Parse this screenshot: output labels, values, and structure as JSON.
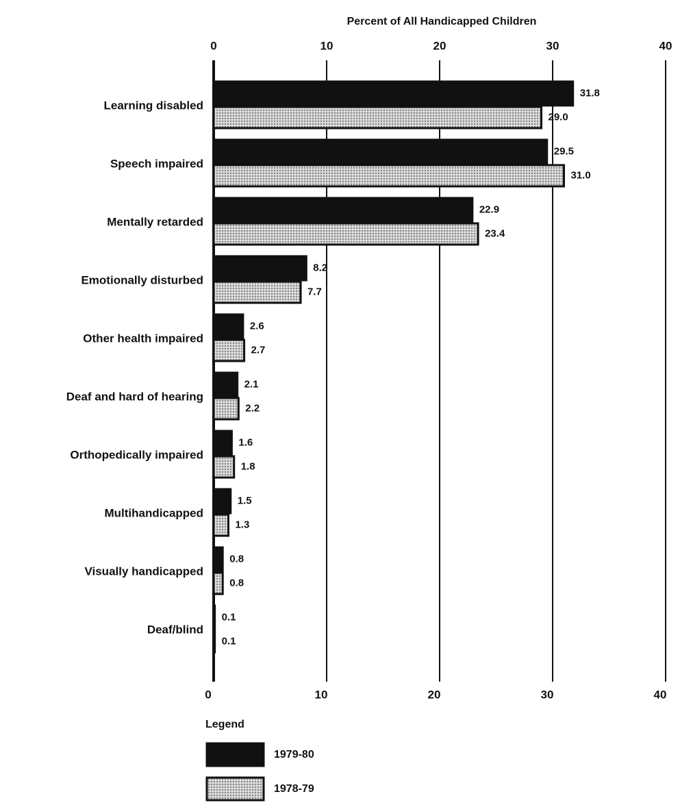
{
  "chart_data": {
    "type": "bar",
    "orientation": "horizontal",
    "title": "Percent of All Handicapped Children",
    "categories": [
      "Learning disabled",
      "Speech impaired",
      "Mentally retarded",
      "Emotionally disturbed",
      "Other health impaired",
      "Deaf and hard of hearing",
      "Orthopedically impaired",
      "Multihandicapped",
      "Visually handicapped",
      "Deaf/blind"
    ],
    "series": [
      {
        "name": "1979-80",
        "color": "#111111",
        "pattern": "solid",
        "values": [
          31.8,
          29.5,
          22.9,
          8.2,
          2.6,
          2.1,
          1.6,
          1.5,
          0.8,
          0.1
        ],
        "value_labels": [
          "31.8",
          "29.5",
          "22.9",
          "8.2",
          "2.6",
          "2.1",
          "1.6",
          "1.5",
          "0.8",
          "0.1"
        ]
      },
      {
        "name": "1978-79",
        "color": "#cfcfcf",
        "pattern": "dotted",
        "values": [
          29.0,
          31.0,
          23.4,
          7.7,
          2.7,
          2.2,
          1.8,
          1.3,
          0.8,
          0.1
        ],
        "value_labels": [
          "29.0",
          "31.0",
          "23.4",
          "7.7",
          "2.7",
          "2.2",
          "1.8",
          "1.3",
          "0.8",
          "0.1"
        ]
      }
    ],
    "xlim": [
      0,
      40
    ],
    "xticks": [
      0,
      10,
      20,
      30,
      40
    ],
    "grid": true,
    "legend_title": "Legend",
    "legend": "bottom-left"
  }
}
